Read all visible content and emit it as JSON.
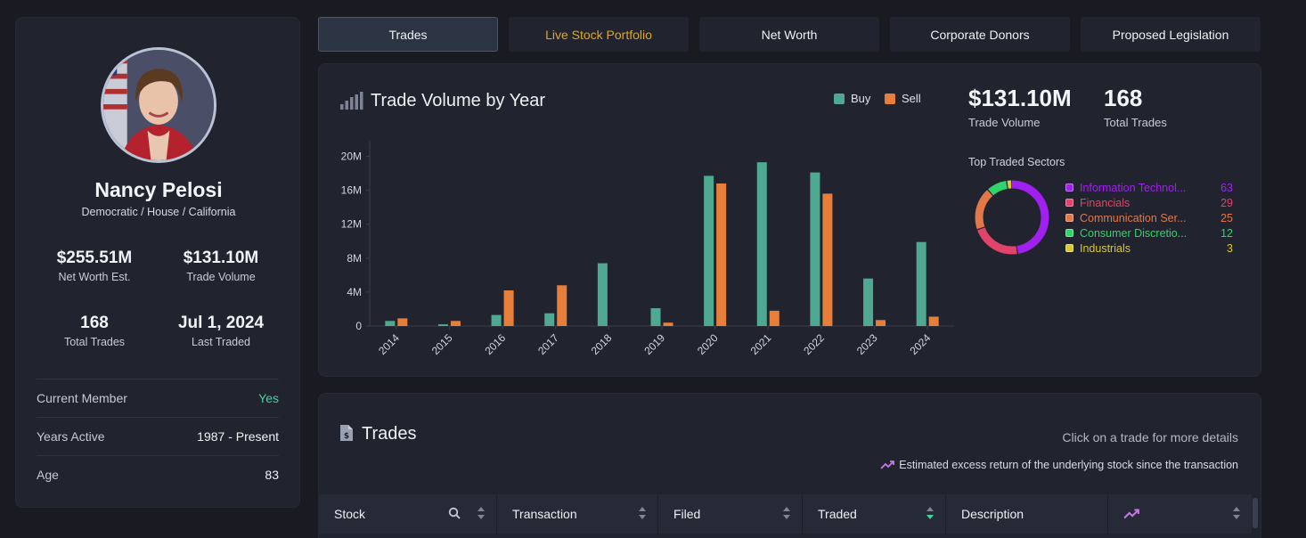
{
  "profile": {
    "name": "Nancy Pelosi",
    "subtitle": "Democratic / House / California",
    "stats": [
      {
        "value": "$255.51M",
        "label": "Net Worth Est."
      },
      {
        "value": "$131.10M",
        "label": "Trade Volume"
      },
      {
        "value": "168",
        "label": "Total Trades"
      },
      {
        "value": "Jul 1, 2024",
        "label": "Last Traded"
      }
    ],
    "rows": [
      {
        "key": "Current Member",
        "value": "Yes"
      },
      {
        "key": "Years Active",
        "value": "1987 - Present"
      },
      {
        "key": "Age",
        "value": "83"
      }
    ]
  },
  "tabs": [
    {
      "label": "Trades"
    },
    {
      "label": "Live Stock Portfolio"
    },
    {
      "label": "Net Worth"
    },
    {
      "label": "Corporate Donors"
    },
    {
      "label": "Proposed Legislation"
    }
  ],
  "chart_card": {
    "title": "Trade Volume by Year",
    "kpis": [
      {
        "value": "$131.10M",
        "label": "Trade Volume"
      },
      {
        "value": "168",
        "label": "Total Trades"
      }
    ],
    "sectors_title": "Top Traded Sectors",
    "sectors": [
      {
        "name": "Information Technol...",
        "count": "63",
        "color": "#a020f0"
      },
      {
        "name": "Financials",
        "count": "29",
        "color": "#e0446a"
      },
      {
        "name": "Communication Ser...",
        "count": "25",
        "color": "#e2774a"
      },
      {
        "name": "Consumer Discretio...",
        "count": "12",
        "color": "#2fd46a"
      },
      {
        "name": "Industrials",
        "count": "3",
        "color": "#d6c932"
      }
    ]
  },
  "chart_data": {
    "type": "bar",
    "categories": [
      "2014",
      "2015",
      "2016",
      "2017",
      "2018",
      "2019",
      "2020",
      "2021",
      "2022",
      "2023",
      "2024"
    ],
    "series": [
      {
        "name": "Buy",
        "color": "#4fa891",
        "values": [
          0.6,
          0.2,
          1.3,
          1.5,
          7.4,
          2.1,
          17.7,
          19.3,
          18.1,
          5.6,
          9.9
        ]
      },
      {
        "name": "Sell",
        "color": "#e77f3a",
        "values": [
          0.9,
          0.6,
          4.2,
          4.8,
          0,
          0.4,
          16.8,
          1.8,
          15.6,
          0.7,
          1.1
        ]
      }
    ],
    "yticks": [
      "0",
      "4M",
      "8M",
      "12M",
      "16M",
      "20M"
    ],
    "ylim": [
      0,
      21
    ],
    "grid": false,
    "legend": "top-right"
  },
  "trades": {
    "title": "Trades",
    "hint": "Click on a trade for more details",
    "note": "Estimated excess return of the underlying stock since the transaction",
    "columns": [
      "Stock",
      "Transaction",
      "Filed",
      "Traded",
      "Description",
      ""
    ]
  }
}
